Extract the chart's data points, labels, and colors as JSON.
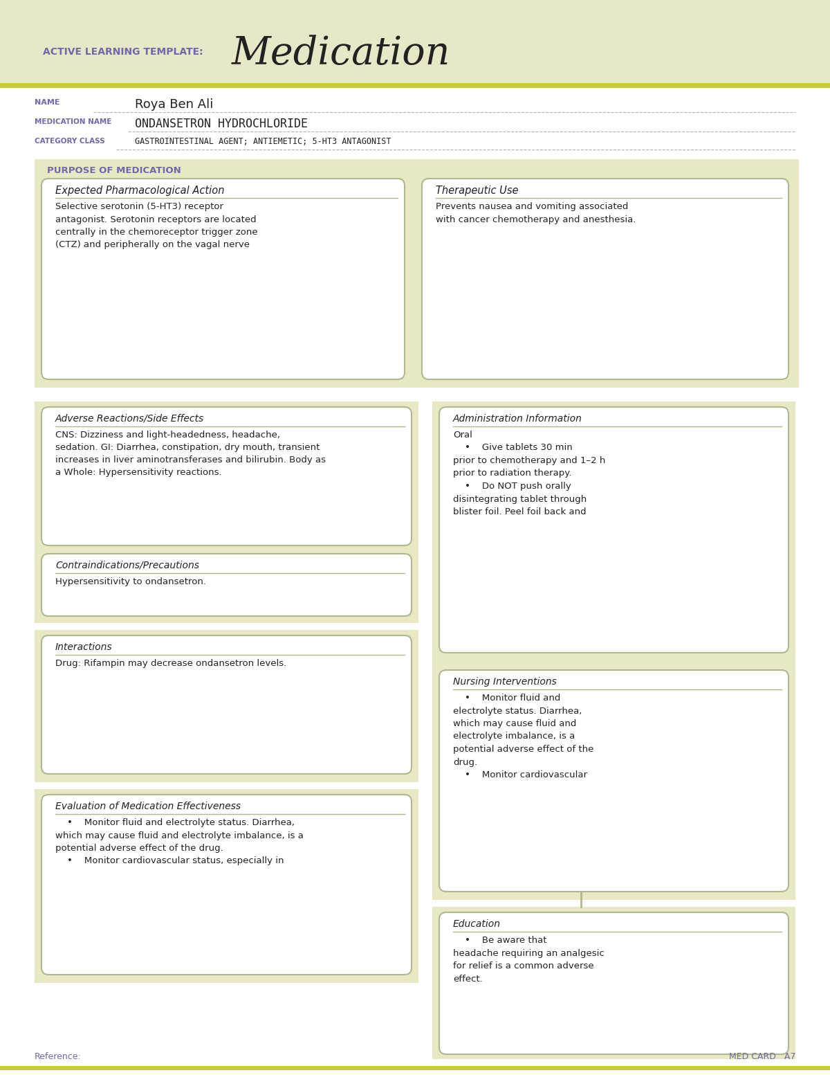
{
  "bg_color": "#eeefd0",
  "white": "#ffffff",
  "olive_line": "#c8cc3a",
  "purple_label": "#7068a8",
  "dark_text": "#222222",
  "box_bg": "#e8e8c4",
  "box_border": "#b0b890",
  "header_bg": "#e8e8c8",
  "gray_line": "#b0b0b0",
  "title_prefix": "ACTIVE LEARNING TEMPLATE:",
  "title_main": "Medication",
  "name_label": "NAME",
  "name_value": "Roya Ben Ali",
  "med_name_label": "MEDICATION NAME",
  "med_name_value": "ONDANSETRON HYDROCHLORIDE",
  "cat_label": "CATEGORY CLASS",
  "cat_value": "GASTROINTESTINAL AGENT; ANTIEMETIC; 5-HT3 ANTAGONIST",
  "purpose_label": "PURPOSE OF MEDICATION",
  "box1_title": "Expected Pharmacological Action",
  "box1_text": "Selective serotonin (5-HT3) receptor\nantagonist. Serotonin receptors are located\ncentrally in the chemoreceptor trigger zone\n(CTZ) and peripherally on the vagal nerve",
  "box2_title": "Therapeutic Use",
  "box2_text": "Prevents nausea and vomiting associated\nwith cancer chemotherapy and anesthesia.",
  "box3_title": "Adverse Reactions/Side Effects",
  "box3_text": "CNS: Dizziness and light-headedness, headache,\nsedation. GI: Diarrhea, constipation, dry mouth, transient\nincreases in liver aminotransferases and bilirubin. Body as\na Whole: Hypersensitivity reactions.",
  "box4_title": "Administration Information",
  "box4_text": "Oral\n    •    Give tablets 30 min\nprior to chemotherapy and 1–2 h\nprior to radiation therapy.\n    •    Do NOT push orally\ndisintegrating tablet through\nblister foil. Peel foil back and",
  "box5_title": "Contraindications/Precautions",
  "box5_text": "Hypersensitivity to ondansetron.",
  "box6_title": "Nursing Interventions",
  "box6_text": "    •    Monitor fluid and\nelectrolyte status. Diarrhea,\nwhich may cause fluid and\nelectrolyte imbalance, is a\npotential adverse effect of the\ndrug.\n    •    Monitor cardiovascular",
  "box7_title": "Interactions",
  "box7_text": "Drug: Rifampin may decrease ondansetron levels.",
  "box8_title": "Education",
  "box8_text": "    •    Be aware that\nheadache requiring an analgesic\nfor relief is a common adverse\neffect.",
  "box9_title": "Evaluation of Medication Effectiveness",
  "box9_text": "    •    Monitor fluid and electrolyte status. Diarrhea,\nwhich may cause fluid and electrolyte imbalance, is a\npotential adverse effect of the drug.\n    •    Monitor cardiovascular status, especially in",
  "footer_left": "Reference:",
  "footer_right": "MED CARD   A7",
  "fig_w": 12.0,
  "fig_h": 15.53,
  "dpi": 100
}
